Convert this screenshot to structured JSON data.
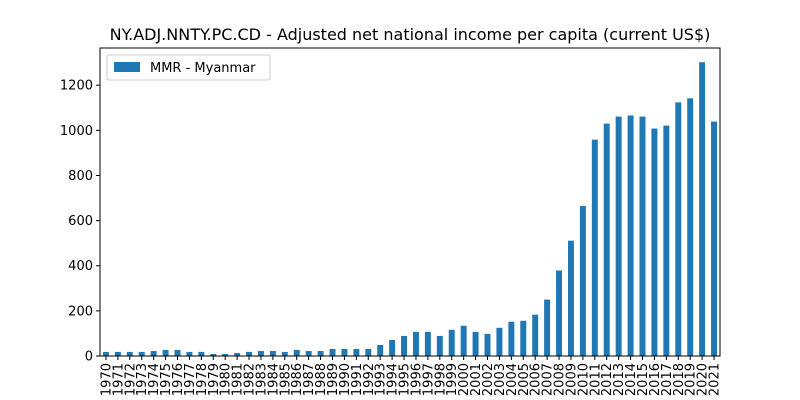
{
  "chart_data": {
    "type": "bar",
    "title": "NY.ADJ.NNTY.PC.CD - Adjusted net national income per capita (current US$)",
    "xlabel": "",
    "ylabel": "",
    "ylim": [
      0,
      1365
    ],
    "yticks": [
      0,
      200,
      400,
      600,
      800,
      1000,
      1200
    ],
    "legend_position": "top-left",
    "grid": false,
    "bar_color": "#1f77b4",
    "categories": [
      "1970",
      "1971",
      "1972",
      "1973",
      "1974",
      "1975",
      "1976",
      "1977",
      "1978",
      "1979",
      "1980",
      "1981",
      "1982",
      "1983",
      "1984",
      "1985",
      "1986",
      "1987",
      "1988",
      "1989",
      "1990",
      "1991",
      "1992",
      "1993",
      "1994",
      "1995",
      "1996",
      "1997",
      "1998",
      "1999",
      "2000",
      "2001",
      "2002",
      "2003",
      "2004",
      "2005",
      "2006",
      "2007",
      "2008",
      "2009",
      "2010",
      "2011",
      "2012",
      "2013",
      "2014",
      "2015",
      "2016",
      "2017",
      "2018",
      "2019",
      "2020",
      "2021"
    ],
    "series": [
      {
        "name": "MMR - Myanmar",
        "values": [
          18,
          18,
          18,
          18,
          22,
          27,
          27,
          18,
          18,
          9,
          9,
          13,
          18,
          22,
          22,
          18,
          27,
          22,
          22,
          31,
          31,
          31,
          31,
          49,
          71,
          89,
          107,
          107,
          89,
          116,
          134,
          107,
          98,
          125,
          152,
          156,
          183,
          250,
          379,
          511,
          665,
          959,
          1030,
          1061,
          1066,
          1061,
          1008,
          1021,
          1124,
          1142,
          1302,
          1039
        ]
      }
    ]
  }
}
